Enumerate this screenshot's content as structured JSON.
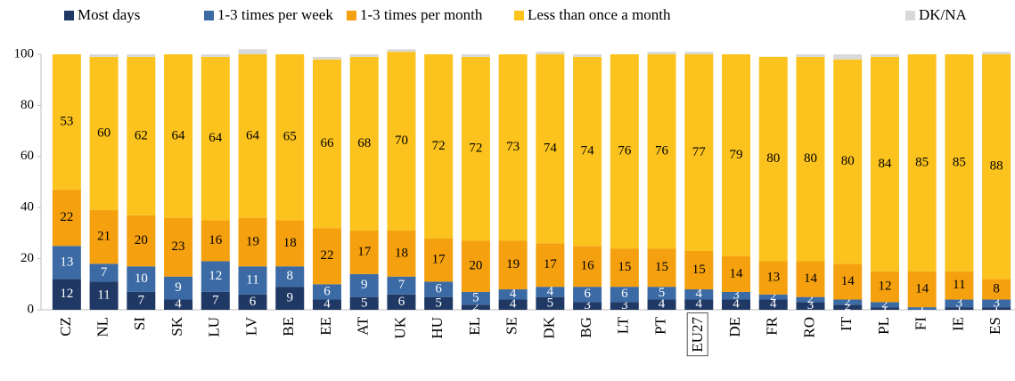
{
  "chart_data": {
    "type": "stacked_bar",
    "categories": [
      "CZ",
      "NL",
      "SI",
      "SK",
      "LU",
      "LV",
      "BE",
      "EE",
      "AT",
      "UK",
      "HU",
      "EL",
      "SE",
      "DK",
      "BG",
      "LT",
      "PT",
      "EU27",
      "DE",
      "FR",
      "RO",
      "IT",
      "PL",
      "FI",
      "IE",
      "ES"
    ],
    "highlight": "EU27",
    "series": [
      {
        "name": "Most days",
        "color": "#1f3864",
        "label_color": "#ffffff",
        "values": [
          12,
          11,
          7,
          4,
          7,
          6,
          9,
          4,
          5,
          6,
          5,
          2,
          4,
          5,
          3,
          3,
          4,
          4,
          4,
          4,
          3,
          2,
          1,
          0,
          1,
          1
        ]
      },
      {
        "name": "1-3 times per week",
        "color": "#3b6aa5",
        "label_color": "#ffffff",
        "values": [
          13,
          7,
          10,
          9,
          12,
          11,
          8,
          6,
          9,
          7,
          6,
          5,
          4,
          4,
          6,
          6,
          5,
          4,
          3,
          2,
          2,
          2,
          2,
          1,
          3,
          3
        ]
      },
      {
        "name": "1-3 times per month",
        "color": "#f5a00f",
        "label_color": "#000000",
        "values": [
          22,
          21,
          20,
          23,
          16,
          19,
          18,
          22,
          17,
          18,
          17,
          20,
          19,
          17,
          16,
          15,
          15,
          15,
          14,
          13,
          14,
          14,
          12,
          14,
          11,
          8
        ]
      },
      {
        "name": "Less than once a month",
        "color": "#fcc31e",
        "label_color": "#000000",
        "values": [
          53,
          60,
          62,
          64,
          64,
          64,
          65,
          66,
          68,
          70,
          72,
          72,
          73,
          74,
          74,
          76,
          76,
          77,
          79,
          80,
          80,
          80,
          84,
          85,
          85,
          88
        ]
      },
      {
        "name": "DK/NA",
        "color": "#d9d9d9",
        "labels": false,
        "values": [
          0,
          1,
          1,
          0,
          1,
          2,
          0,
          1,
          1,
          1,
          0,
          1,
          0,
          1,
          1,
          0,
          1,
          1,
          0,
          0,
          1,
          2,
          1,
          0,
          0,
          1
        ]
      }
    ],
    "ylim": [
      0,
      100
    ],
    "yticks": [
      0,
      20,
      40,
      60,
      80,
      100
    ],
    "grid": false,
    "legend": "top"
  }
}
